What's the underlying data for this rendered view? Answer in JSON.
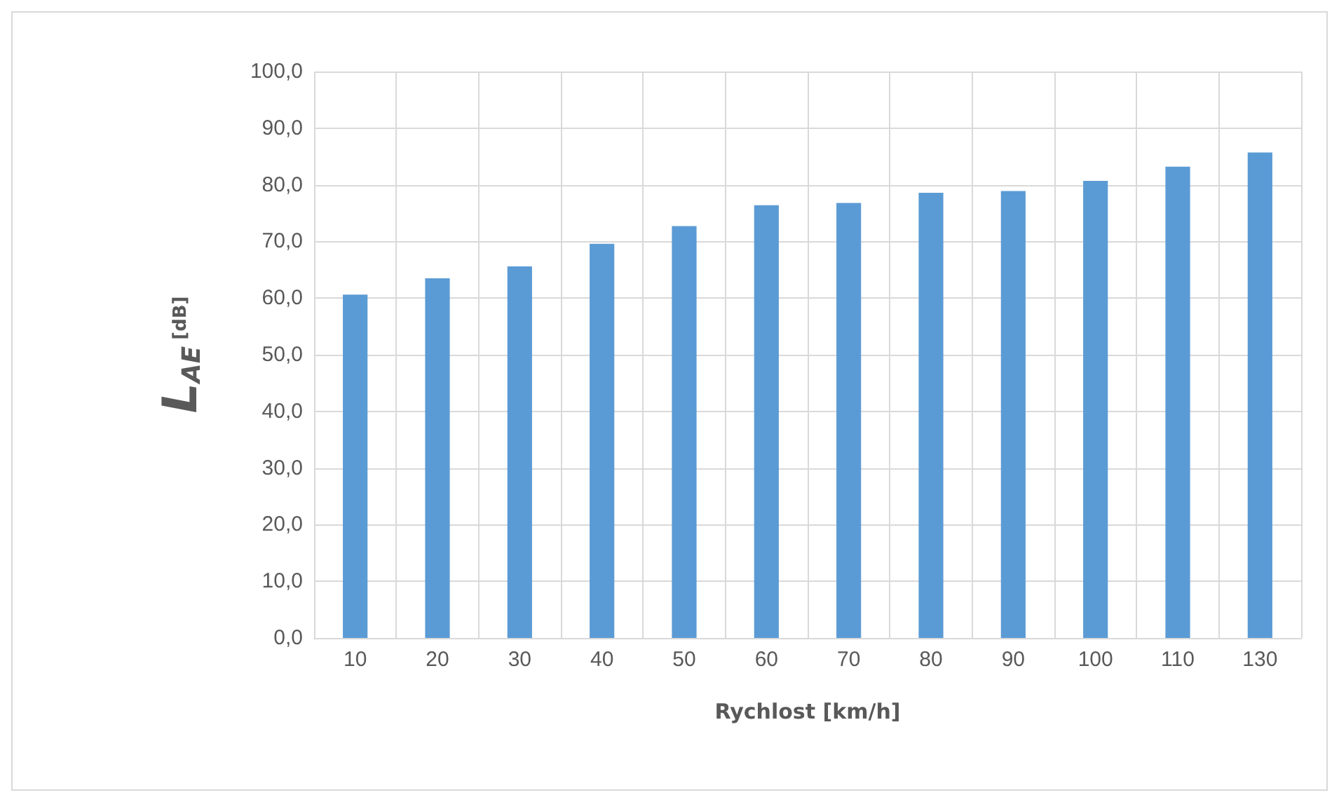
{
  "chart_data": {
    "type": "bar",
    "xlabel": "Rychlost [km/h]",
    "ylabel": "L$_{AE}$ [dB]",
    "categories": [
      "10",
      "20",
      "30",
      "40",
      "50",
      "60",
      "70",
      "80",
      "90",
      "100",
      "110",
      "130"
    ],
    "values": [
      60.6,
      63.5,
      65.6,
      69.6,
      72.7,
      76.4,
      76.8,
      78.6,
      78.9,
      80.7,
      83.2,
      85.7
    ],
    "color": "#5b9bd5",
    "ylim": [
      0,
      100
    ],
    "yticks": [
      {
        "value": 0,
        "label": "0,0"
      },
      {
        "value": 10,
        "label": "10,0"
      },
      {
        "value": 20,
        "label": "20,0"
      },
      {
        "value": 30,
        "label": "30,0"
      },
      {
        "value": 40,
        "label": "40,0"
      },
      {
        "value": 50,
        "label": "50,0"
      },
      {
        "value": 60,
        "label": "60,0"
      },
      {
        "value": 70,
        "label": "70,0"
      },
      {
        "value": 80,
        "label": "80,0"
      },
      {
        "value": 90,
        "label": "90,0"
      },
      {
        "value": 100,
        "label": "100,0"
      }
    ],
    "grid": true
  }
}
